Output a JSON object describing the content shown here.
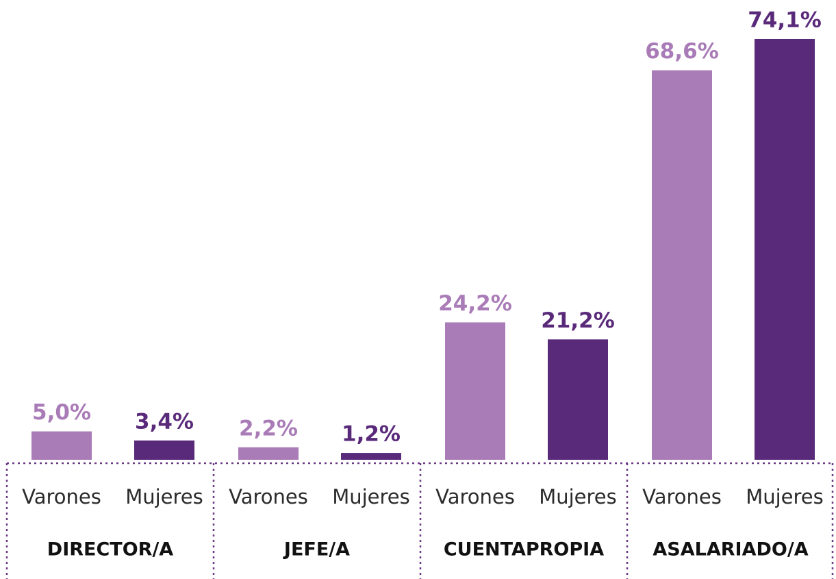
{
  "chart_data": {
    "type": "bar",
    "categories": [
      "DIRECTOR/A",
      "JEFE/A",
      "CUENTAPROPIA",
      "ASALARIADO/A"
    ],
    "series": [
      {
        "name": "Varones",
        "color": "#a97bb7",
        "values": [
          5.0,
          2.2,
          24.2,
          68.6
        ],
        "value_labels": [
          "5,0%",
          "2,2%",
          "24,2%",
          "68,6%"
        ]
      },
      {
        "name": "Mujeres",
        "color": "#5a2a7a",
        "values": [
          3.4,
          1.2,
          21.2,
          74.1
        ],
        "value_labels": [
          "3,4%",
          "1,2%",
          "21,2%",
          "74,1%"
        ]
      }
    ]
  }
}
